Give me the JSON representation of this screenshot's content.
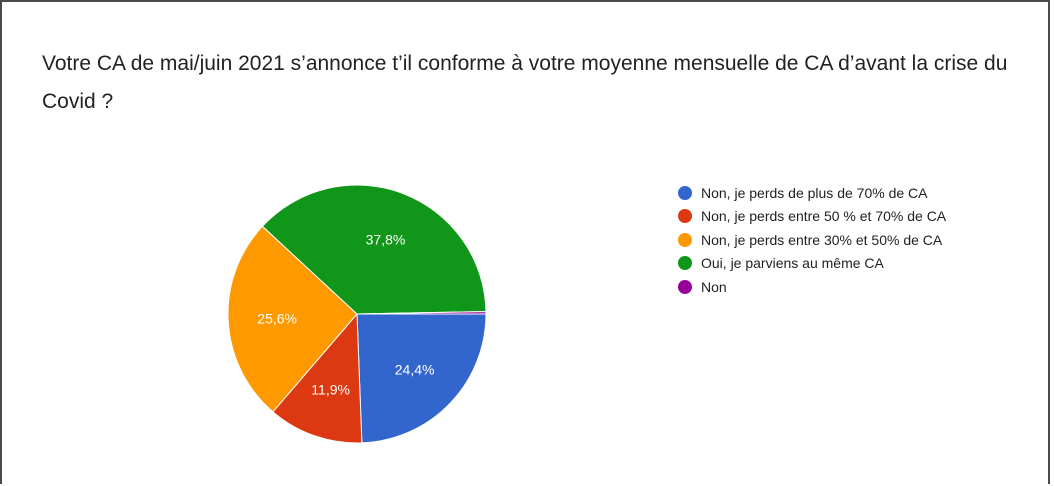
{
  "chart_data": {
    "type": "pie",
    "title": "Votre CA de mai/juin 2021 s’annonce t’il conforme à votre moyenne mensuelle de CA d’avant la crise du Covid ?",
    "legend_position": "right",
    "slices": [
      {
        "label": "Non, je perds de plus de 70% de CA",
        "value": 24.4,
        "display": "24,4%",
        "color": "#3366cc"
      },
      {
        "label": "Non, je perds entre 50 % et 70% de CA",
        "value": 11.9,
        "display": "11,9%",
        "color": "#dc3912"
      },
      {
        "label": "Non, je perds entre 30% et 50% de CA",
        "value": 25.6,
        "display": "25,6%",
        "color": "#ff9900"
      },
      {
        "label": "Oui, je parviens au même CA",
        "value": 37.8,
        "display": "37,8%",
        "color": "#109618"
      },
      {
        "label": "Non",
        "value": 0.3,
        "display": "",
        "color": "#990099"
      }
    ]
  }
}
